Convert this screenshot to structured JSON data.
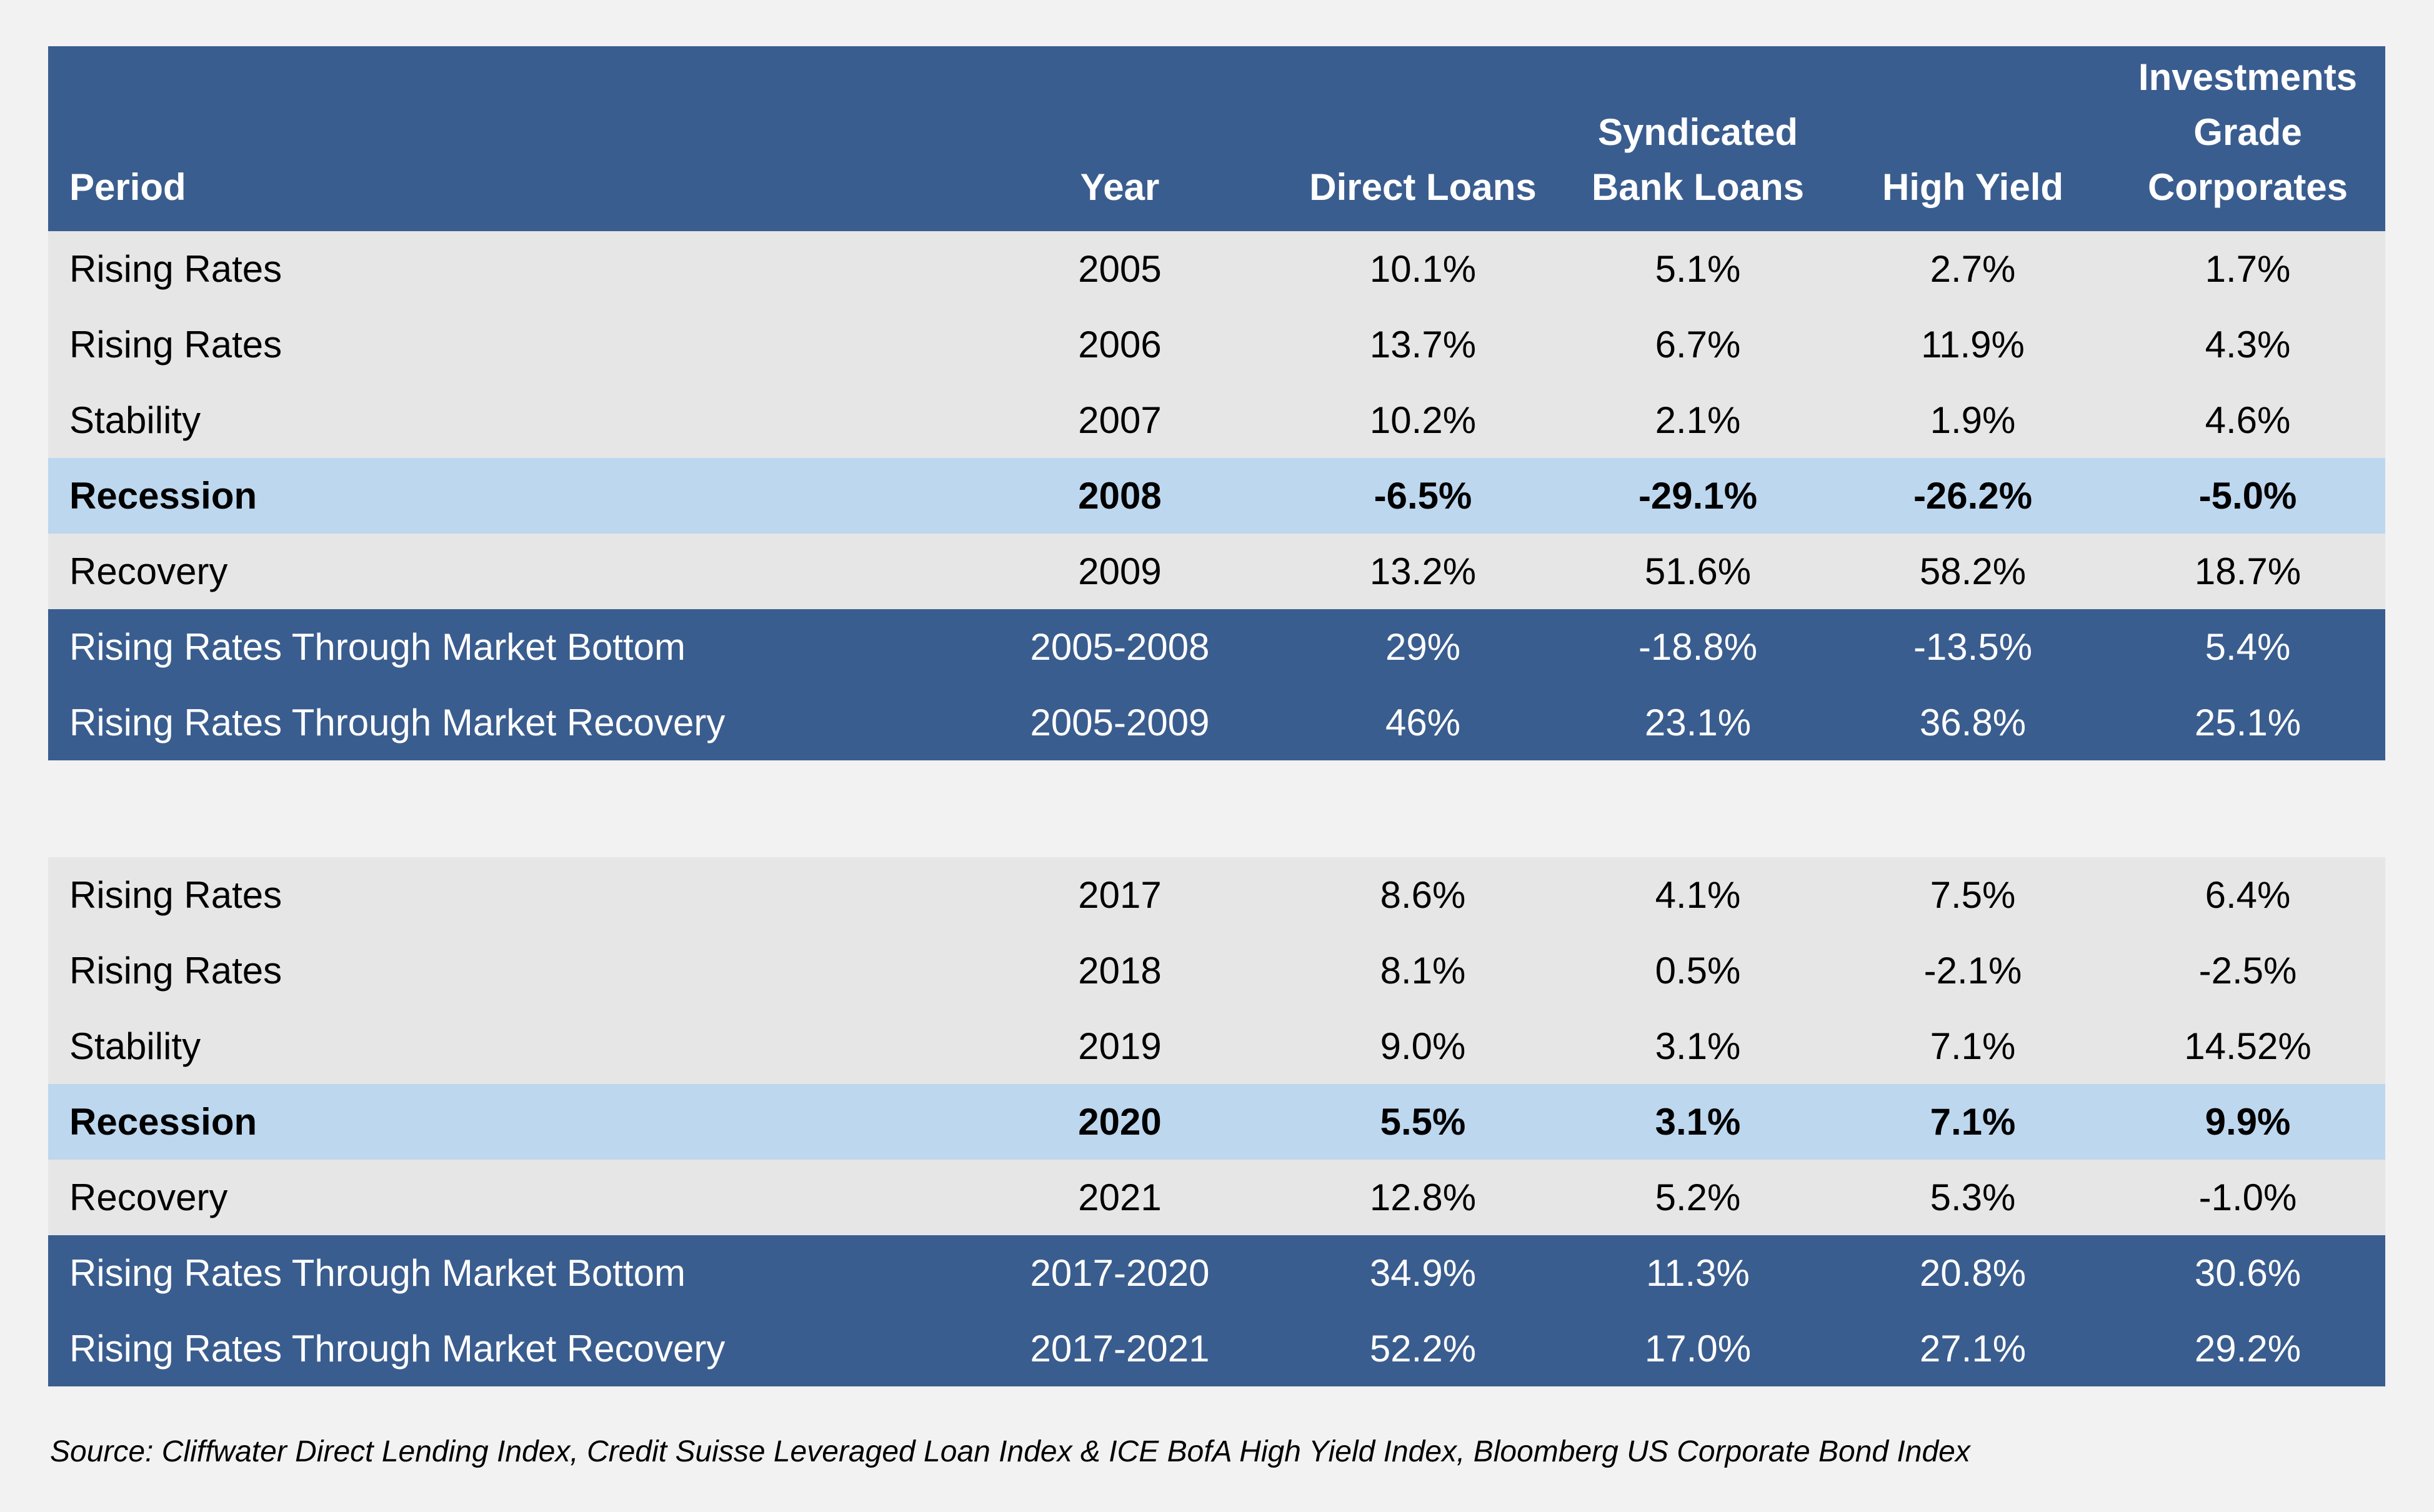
{
  "chart_data": {
    "type": "table",
    "headers": {
      "period": "Period",
      "year": "Year",
      "direct_loans": "Direct Loans",
      "syndicated": [
        "Syndicated",
        "Bank Loans"
      ],
      "high_yield": "High Yield",
      "ig_corporates": [
        "Investments",
        "Grade",
        "Corporates"
      ]
    },
    "columns": [
      "Period",
      "Year",
      "Direct Loans",
      "Syndicated Bank Loans",
      "High Yield",
      "Investments Grade Corporates"
    ],
    "tables": [
      {
        "rows": [
          {
            "period": "Rising Rates",
            "year": "2005",
            "direct_loans": "10.1%",
            "syndicated": "5.1%",
            "high_yield": "2.7%",
            "ig_corporates": "1.7%",
            "style": "plain"
          },
          {
            "period": "Rising Rates",
            "year": "2006",
            "direct_loans": "13.7%",
            "syndicated": "6.7%",
            "high_yield": "11.9%",
            "ig_corporates": "4.3%",
            "style": "plain"
          },
          {
            "period": "Stability",
            "year": "2007",
            "direct_loans": "10.2%",
            "syndicated": "2.1%",
            "high_yield": "1.9%",
            "ig_corporates": "4.6%",
            "style": "plain"
          },
          {
            "period": "Recession",
            "year": "2008",
            "direct_loans": "-6.5%",
            "syndicated": "-29.1%",
            "high_yield": "-26.2%",
            "ig_corporates": "-5.0%",
            "style": "recession"
          },
          {
            "period": "Recovery",
            "year": "2009",
            "direct_loans": "13.2%",
            "syndicated": "51.6%",
            "high_yield": "58.2%",
            "ig_corporates": "18.7%",
            "style": "plain"
          },
          {
            "period": "Rising Rates Through Market Bottom",
            "year": "2005-2008",
            "direct_loans": "29%",
            "syndicated": "-18.8%",
            "high_yield": "-13.5%",
            "ig_corporates": "5.4%",
            "style": "summary"
          },
          {
            "period": "Rising Rates Through Market Recovery",
            "year": "2005-2009",
            "direct_loans": "46%",
            "syndicated": "23.1%",
            "high_yield": "36.8%",
            "ig_corporates": "25.1%",
            "style": "summary"
          }
        ]
      },
      {
        "rows": [
          {
            "period": "Rising Rates",
            "year": "2017",
            "direct_loans": "8.6%",
            "syndicated": "4.1%",
            "high_yield": "7.5%",
            "ig_corporates": "6.4%",
            "style": "plain"
          },
          {
            "period": "Rising Rates",
            "year": "2018",
            "direct_loans": "8.1%",
            "syndicated": "0.5%",
            "high_yield": "-2.1%",
            "ig_corporates": "-2.5%",
            "style": "plain"
          },
          {
            "period": "Stability",
            "year": "2019",
            "direct_loans": "9.0%",
            "syndicated": "3.1%",
            "high_yield": "7.1%",
            "ig_corporates": "14.52%",
            "style": "plain"
          },
          {
            "period": "Recession",
            "year": "2020",
            "direct_loans": "5.5%",
            "syndicated": "3.1%",
            "high_yield": "7.1%",
            "ig_corporates": "9.9%",
            "style": "recession"
          },
          {
            "period": "Recovery",
            "year": "2021",
            "direct_loans": "12.8%",
            "syndicated": "5.2%",
            "high_yield": "5.3%",
            "ig_corporates": "-1.0%",
            "style": "plain"
          },
          {
            "period": "Rising Rates Through Market Bottom",
            "year": "2017-2020",
            "direct_loans": "34.9%",
            "syndicated": "11.3%",
            "high_yield": "20.8%",
            "ig_corporates": "30.6%",
            "style": "summary"
          },
          {
            "period": "Rising Rates Through Market Recovery",
            "year": "2017-2021",
            "direct_loans": "52.2%",
            "syndicated": "17.0%",
            "high_yield": "27.1%",
            "ig_corporates": "29.2%",
            "style": "summary"
          }
        ]
      }
    ],
    "source": "Source: Cliffwater Direct Lending Index, Credit Suisse Leveraged Loan Index & ICE BofA High Yield Index, Bloomberg US Corporate Bond Index"
  },
  "colors": {
    "header_bg": "#3a5d8f",
    "summary_bg": "#3a5d8f",
    "plain_row_bg": "#e6e6e6",
    "recession_row_bg": "#bdd7ee",
    "page_bg": "#f2f2f2"
  }
}
